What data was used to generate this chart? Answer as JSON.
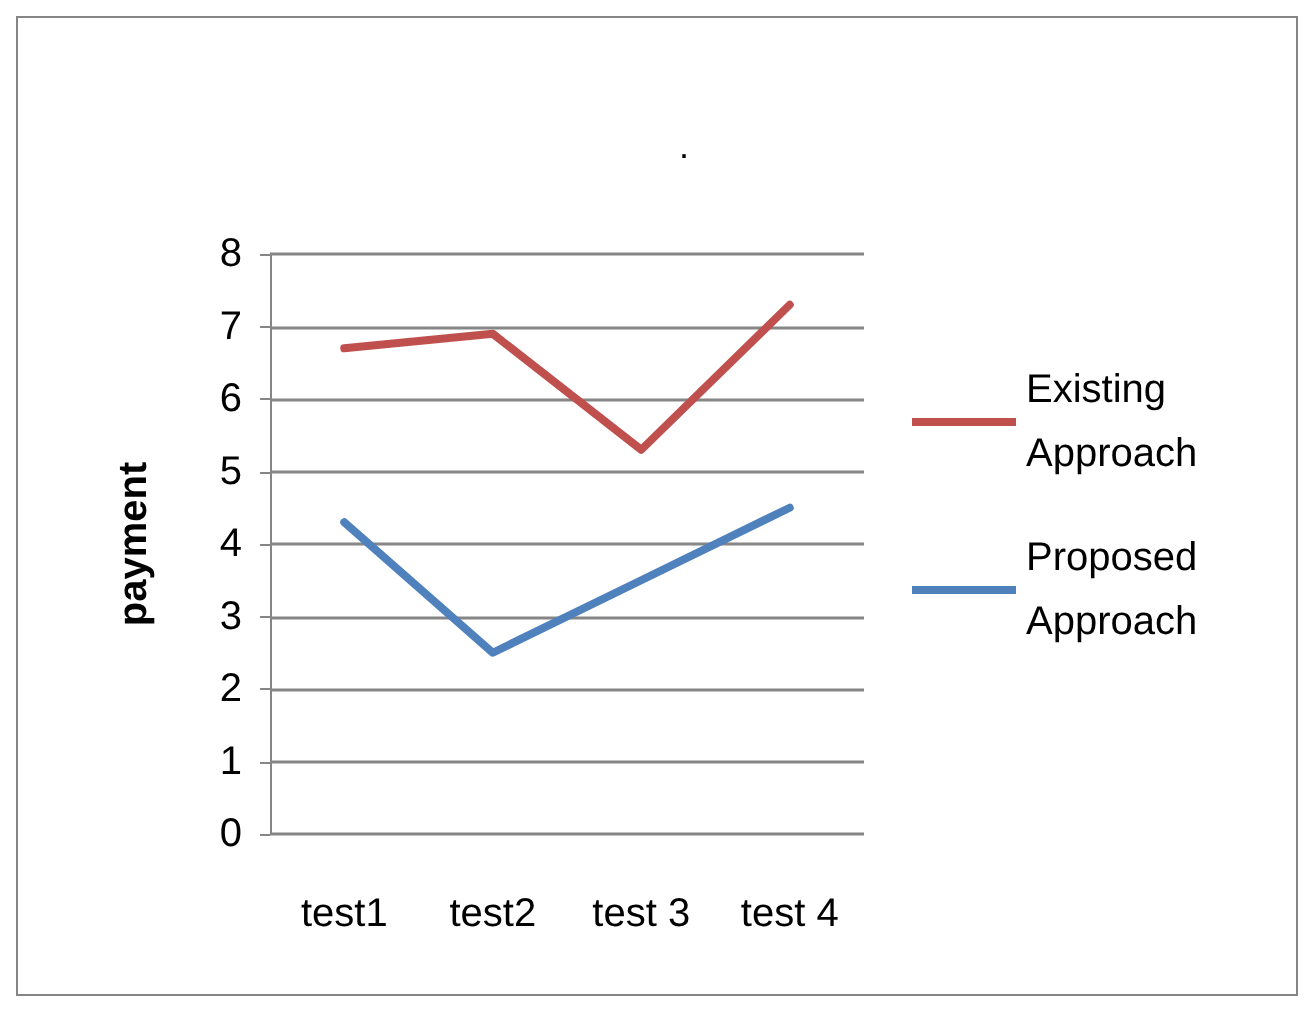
{
  "chart_data": {
    "type": "line",
    "title": ".",
    "ylabel": "payment",
    "categories": [
      "test1",
      "test2",
      "test 3",
      "test 4"
    ],
    "series": [
      {
        "name": "Existing Approach",
        "color": "#c0504d",
        "values": [
          6.7,
          6.9,
          5.3,
          7.3
        ]
      },
      {
        "name": "Proposed Approach",
        "color": "#4f81bd",
        "values": [
          4.3,
          2.5,
          3.5,
          4.5
        ]
      }
    ],
    "ylim": [
      0,
      8
    ],
    "yticks": [
      0,
      1,
      2,
      3,
      4,
      5,
      6,
      7,
      8
    ],
    "grid": "y",
    "legend": "right",
    "marker": "none",
    "line_style": "solid"
  }
}
